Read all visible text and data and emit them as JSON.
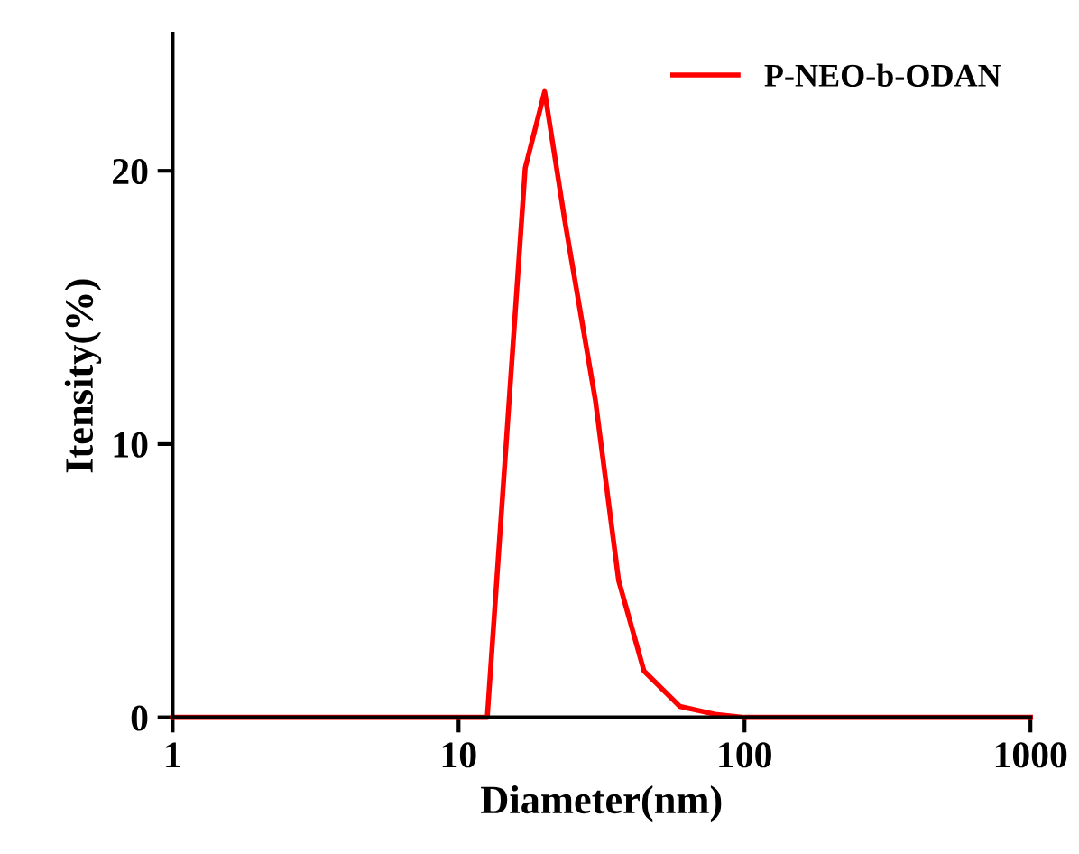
{
  "chart_data": {
    "type": "line",
    "xlabel": "Diameter(nm)",
    "ylabel": "Itensity(%)",
    "log": "x",
    "legend": "top right",
    "grid": false,
    "marker": "none",
    "line_style": "solid",
    "xlim": [
      1,
      1000
    ],
    "xticks": [
      1,
      10,
      100,
      1000
    ],
    "ylim": [
      0,
      25
    ],
    "yticks": [
      0,
      10,
      20
    ],
    "series": [
      {
        "name": "P-NEO-b-ODAN",
        "color": "#ff0000",
        "x": [
          1,
          5,
          10,
          12.6,
          17.1,
          20.0,
          23.5,
          30.1,
          36.3,
          44.5,
          59.4,
          80,
          100,
          200,
          500,
          1000
        ],
        "values": [
          0,
          0,
          0,
          0,
          20.1,
          22.9,
          18.2,
          11.6,
          5.0,
          1.7,
          0.4,
          0.1,
          0,
          0,
          0,
          0
        ]
      }
    ]
  }
}
